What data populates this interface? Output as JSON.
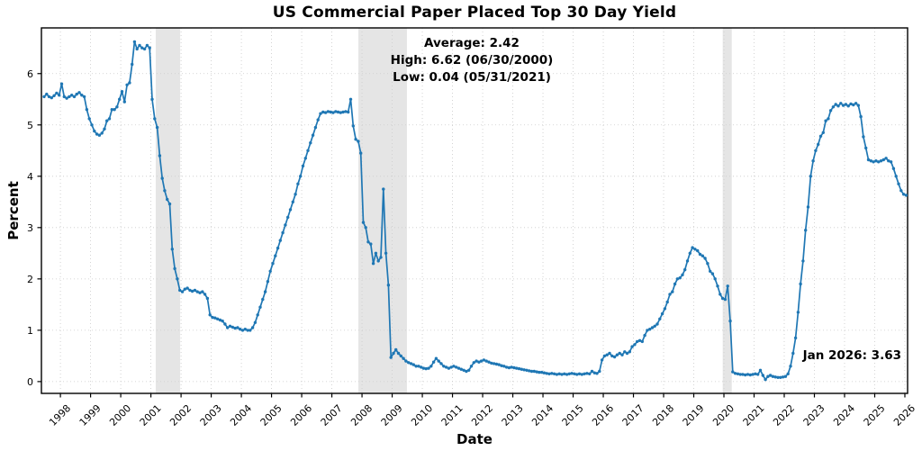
{
  "chart_data": {
    "type": "line",
    "title": "US Commercial Paper Placed Top 30 Day Yield",
    "xlabel": "Date",
    "ylabel": "Percent",
    "xlim": [
      1997.37,
      2026.09
    ],
    "ylim": [
      -0.23,
      6.89
    ],
    "x_ticks": [
      1998,
      1999,
      2000,
      2001,
      2002,
      2003,
      2004,
      2005,
      2006,
      2007,
      2008,
      2009,
      2010,
      2011,
      2012,
      2013,
      2014,
      2015,
      2016,
      2017,
      2018,
      2019,
      2020,
      2021,
      2022,
      2023,
      2024,
      2025,
      2026
    ],
    "y_ticks": [
      0,
      1,
      2,
      3,
      4,
      5,
      6
    ],
    "grid": true,
    "legend": "none",
    "line_color": "#1f77b4",
    "band_color": "#cfcfcf",
    "band_opacity": 0.55,
    "recession_bands": [
      [
        2001.16,
        2001.97
      ],
      [
        2007.88,
        2009.49
      ],
      [
        2019.96,
        2020.26
      ]
    ],
    "series": [
      {
        "name": "US Commercial Paper Placed Top 30 Day Yield",
        "start_year": 1997,
        "start_month_index": 5,
        "frequency": "monthly",
        "values_by_year": {
          "1997": [
            5.55,
            5.6,
            5.55,
            5.53,
            5.57,
            5.62,
            5.58
          ],
          "1998": [
            5.8,
            5.55,
            5.52,
            5.55,
            5.58,
            5.55,
            5.6,
            5.63,
            5.58,
            5.55,
            5.3,
            5.12
          ],
          "1999": [
            5.0,
            4.88,
            4.82,
            4.8,
            4.84,
            4.92,
            5.08,
            5.12,
            5.3,
            5.3,
            5.35,
            5.5
          ],
          "2000": [
            5.65,
            5.45,
            5.78,
            5.82,
            6.18,
            6.62,
            6.48,
            6.55,
            6.5,
            6.48,
            6.55,
            6.5
          ],
          "2001": [
            5.5,
            5.12,
            4.95,
            4.4,
            3.96,
            3.72,
            3.55,
            3.46,
            2.58,
            2.2,
            2.0,
            1.78
          ],
          "2002": [
            1.75,
            1.8,
            1.82,
            1.78,
            1.76,
            1.78,
            1.75,
            1.73,
            1.75,
            1.7,
            1.62,
            1.3
          ],
          "2003": [
            1.25,
            1.24,
            1.22,
            1.2,
            1.18,
            1.12,
            1.05,
            1.08,
            1.06,
            1.04,
            1.05,
            1.02
          ],
          "2004": [
            1.0,
            1.02,
            1.0,
            1.0,
            1.05,
            1.15,
            1.3,
            1.45,
            1.6,
            1.75,
            1.95,
            2.15
          ],
          "2005": [
            2.3,
            2.45,
            2.6,
            2.75,
            2.9,
            3.05,
            3.2,
            3.35,
            3.5,
            3.65,
            3.85,
            4.0
          ],
          "2006": [
            4.2,
            4.35,
            4.5,
            4.65,
            4.8,
            4.95,
            5.1,
            5.22,
            5.25,
            5.24,
            5.26,
            5.25
          ],
          "2007": [
            5.24,
            5.26,
            5.25,
            5.24,
            5.25,
            5.26,
            5.25,
            5.5,
            4.98,
            4.72,
            4.68,
            4.45
          ],
          "2008": [
            3.1,
            3.0,
            2.72,
            2.68,
            2.3,
            2.5,
            2.35,
            2.42,
            3.75,
            2.5,
            1.88,
            0.47
          ],
          "2009": [
            0.55,
            0.62,
            0.55,
            0.5,
            0.45,
            0.4,
            0.37,
            0.35,
            0.33,
            0.3,
            0.3,
            0.28
          ],
          "2010": [
            0.26,
            0.25,
            0.26,
            0.3,
            0.38,
            0.45,
            0.4,
            0.35,
            0.3,
            0.28,
            0.26,
            0.28
          ],
          "2011": [
            0.3,
            0.28,
            0.26,
            0.24,
            0.22,
            0.2,
            0.22,
            0.3,
            0.37,
            0.4,
            0.38,
            0.4
          ],
          "2012": [
            0.42,
            0.4,
            0.38,
            0.36,
            0.35,
            0.34,
            0.33,
            0.31,
            0.3,
            0.28,
            0.27,
            0.28
          ],
          "2013": [
            0.27,
            0.26,
            0.25,
            0.24,
            0.23,
            0.22,
            0.21,
            0.2,
            0.2,
            0.19,
            0.18,
            0.18
          ],
          "2014": [
            0.17,
            0.16,
            0.15,
            0.16,
            0.15,
            0.14,
            0.15,
            0.14,
            0.15,
            0.14,
            0.15,
            0.16
          ],
          "2015": [
            0.15,
            0.14,
            0.15,
            0.14,
            0.15,
            0.16,
            0.15,
            0.2,
            0.17,
            0.16,
            0.2,
            0.42
          ],
          "2016": [
            0.5,
            0.52,
            0.55,
            0.5,
            0.48,
            0.52,
            0.55,
            0.52,
            0.58,
            0.55,
            0.58,
            0.68
          ],
          "2017": [
            0.72,
            0.78,
            0.8,
            0.78,
            0.9,
            1.0,
            1.02,
            1.05,
            1.08,
            1.12,
            1.22,
            1.32
          ],
          "2018": [
            1.42,
            1.55,
            1.7,
            1.75,
            1.9,
            2.0,
            2.02,
            2.08,
            2.18,
            2.35,
            2.5,
            2.61
          ],
          "2019": [
            2.58,
            2.55,
            2.48,
            2.45,
            2.4,
            2.3,
            2.15,
            2.1,
            2.0,
            1.86,
            1.7,
            1.62
          ],
          "2020": [
            1.6,
            1.86,
            1.18,
            0.19,
            0.16,
            0.15,
            0.14,
            0.14,
            0.13,
            0.14,
            0.13,
            0.14
          ],
          "2021": [
            0.15,
            0.14,
            0.22,
            0.12,
            0.04,
            0.1,
            0.12,
            0.1,
            0.09,
            0.08,
            0.08,
            0.09
          ],
          "2022": [
            0.1,
            0.15,
            0.3,
            0.55,
            0.85,
            1.35,
            1.9,
            2.35,
            2.95,
            3.4,
            4.0,
            4.3
          ],
          "2023": [
            4.5,
            4.62,
            4.78,
            4.85,
            5.08,
            5.12,
            5.28,
            5.35,
            5.4,
            5.37,
            5.42,
            5.38
          ],
          "2024": [
            5.4,
            5.37,
            5.41,
            5.39,
            5.42,
            5.38,
            5.16,
            4.77,
            4.55,
            4.32,
            4.3,
            4.28
          ],
          "2025": [
            4.3,
            4.28,
            4.3,
            4.32,
            4.35,
            4.3,
            4.28,
            4.15,
            4.0,
            3.85,
            3.72,
            3.65
          ],
          "2026": [
            3.63
          ]
        }
      }
    ],
    "annotations": {
      "average": "Average: 2.42",
      "high": "High: 6.62 (06/30/2000)",
      "low": "Low: 0.04 (05/31/2021)",
      "latest": "Jan 2026: 3.63"
    }
  }
}
